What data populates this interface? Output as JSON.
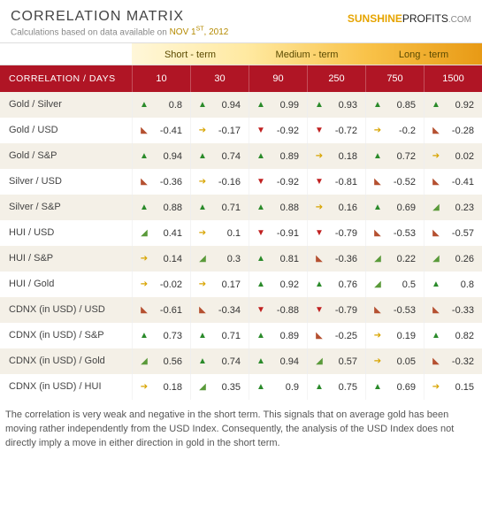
{
  "header": {
    "title": "CORRELATION MATRIX",
    "subtitle_prefix": "Calculations based on data available on  ",
    "date": "NOV 1ST, 2012",
    "logo_sun": "SUNSHINE",
    "logo_rest": "PROFITS",
    "logo_dotcom": ".COM"
  },
  "terms": [
    {
      "label": "Short - term",
      "class": "g-short",
      "span": 2
    },
    {
      "label": "Medium - term",
      "class": "g-med",
      "span": 2
    },
    {
      "label": "Long - term",
      "class": "g-long",
      "span": 2
    }
  ],
  "hdr_label": "CORRELATION / DAYS",
  "days": [
    "10",
    "30",
    "90",
    "250",
    "750",
    "1500"
  ],
  "arrow_glyphs": {
    "up": "▲",
    "down": "▼",
    "flat": "➔",
    "upslight": "◢",
    "downslight": "◣"
  },
  "arrow_classes": {
    "up": "a-up",
    "down": "a-down",
    "flat": "a-flat",
    "upslight": "a-upslight",
    "downslight": "a-downslight"
  },
  "rows": [
    {
      "label": "Gold / Silver",
      "cells": [
        {
          "a": "up",
          "v": "0.8"
        },
        {
          "a": "up",
          "v": "0.94"
        },
        {
          "a": "up",
          "v": "0.99"
        },
        {
          "a": "up",
          "v": "0.93"
        },
        {
          "a": "up",
          "v": "0.85"
        },
        {
          "a": "up",
          "v": "0.92"
        }
      ]
    },
    {
      "label": "Gold / USD",
      "cells": [
        {
          "a": "downslight",
          "v": "-0.41"
        },
        {
          "a": "flat",
          "v": "-0.17"
        },
        {
          "a": "down",
          "v": "-0.92"
        },
        {
          "a": "down",
          "v": "-0.72"
        },
        {
          "a": "flat",
          "v": "-0.2"
        },
        {
          "a": "downslight",
          "v": "-0.28"
        }
      ]
    },
    {
      "label": "Gold / S&P",
      "cells": [
        {
          "a": "up",
          "v": "0.94"
        },
        {
          "a": "up",
          "v": "0.74"
        },
        {
          "a": "up",
          "v": "0.89"
        },
        {
          "a": "flat",
          "v": "0.18"
        },
        {
          "a": "up",
          "v": "0.72"
        },
        {
          "a": "flat",
          "v": "0.02"
        }
      ]
    },
    {
      "label": "Silver / USD",
      "cells": [
        {
          "a": "downslight",
          "v": "-0.36"
        },
        {
          "a": "flat",
          "v": "-0.16"
        },
        {
          "a": "down",
          "v": "-0.92"
        },
        {
          "a": "down",
          "v": "-0.81"
        },
        {
          "a": "downslight",
          "v": "-0.52"
        },
        {
          "a": "downslight",
          "v": "-0.41"
        }
      ]
    },
    {
      "label": "Silver / S&P",
      "cells": [
        {
          "a": "up",
          "v": "0.88"
        },
        {
          "a": "up",
          "v": "0.71"
        },
        {
          "a": "up",
          "v": "0.88"
        },
        {
          "a": "flat",
          "v": "0.16"
        },
        {
          "a": "up",
          "v": "0.69"
        },
        {
          "a": "upslight",
          "v": "0.23"
        }
      ]
    },
    {
      "label": "HUI / USD",
      "cells": [
        {
          "a": "upslight",
          "v": "0.41"
        },
        {
          "a": "flat",
          "v": "0.1"
        },
        {
          "a": "down",
          "v": "-0.91"
        },
        {
          "a": "down",
          "v": "-0.79"
        },
        {
          "a": "downslight",
          "v": "-0.53"
        },
        {
          "a": "downslight",
          "v": "-0.57"
        }
      ]
    },
    {
      "label": "HUI / S&P",
      "cells": [
        {
          "a": "flat",
          "v": "0.14"
        },
        {
          "a": "upslight",
          "v": "0.3"
        },
        {
          "a": "up",
          "v": "0.81"
        },
        {
          "a": "downslight",
          "v": "-0.36"
        },
        {
          "a": "upslight",
          "v": "0.22"
        },
        {
          "a": "upslight",
          "v": "0.26"
        }
      ]
    },
    {
      "label": "HUI / Gold",
      "cells": [
        {
          "a": "flat",
          "v": "-0.02"
        },
        {
          "a": "flat",
          "v": "0.17"
        },
        {
          "a": "up",
          "v": "0.92"
        },
        {
          "a": "up",
          "v": "0.76"
        },
        {
          "a": "upslight",
          "v": "0.5"
        },
        {
          "a": "up",
          "v": "0.8"
        }
      ]
    },
    {
      "label": "CDNX (in USD) / USD",
      "cells": [
        {
          "a": "downslight",
          "v": "-0.61"
        },
        {
          "a": "downslight",
          "v": "-0.34"
        },
        {
          "a": "down",
          "v": "-0.88"
        },
        {
          "a": "down",
          "v": "-0.79"
        },
        {
          "a": "downslight",
          "v": "-0.53"
        },
        {
          "a": "downslight",
          "v": "-0.33"
        }
      ]
    },
    {
      "label": "CDNX (in USD) / S&P",
      "cells": [
        {
          "a": "up",
          "v": "0.73"
        },
        {
          "a": "up",
          "v": "0.71"
        },
        {
          "a": "up",
          "v": "0.89"
        },
        {
          "a": "downslight",
          "v": "-0.25"
        },
        {
          "a": "flat",
          "v": "0.19"
        },
        {
          "a": "up",
          "v": "0.82"
        }
      ]
    },
    {
      "label": "CDNX (in USD) / Gold",
      "cells": [
        {
          "a": "upslight",
          "v": "0.56"
        },
        {
          "a": "up",
          "v": "0.74"
        },
        {
          "a": "up",
          "v": "0.94"
        },
        {
          "a": "upslight",
          "v": "0.57"
        },
        {
          "a": "flat",
          "v": "0.05"
        },
        {
          "a": "downslight",
          "v": "-0.32"
        }
      ]
    },
    {
      "label": "CDNX (in USD) / HUI",
      "cells": [
        {
          "a": "flat",
          "v": "0.18"
        },
        {
          "a": "upslight",
          "v": "0.35"
        },
        {
          "a": "up",
          "v": "0.9"
        },
        {
          "a": "up",
          "v": "0.75"
        },
        {
          "a": "up",
          "v": "0.69"
        },
        {
          "a": "flat",
          "v": "0.15"
        }
      ]
    }
  ],
  "caption": "The correlation is very weak and negative in the short term. This signals that on average gold has been moving rather independently from the USD Index. Consequently, the analysis of the USD Index does not directly imply a move in either direction in gold in the short term.",
  "colors": {
    "header_bg": "#b01525",
    "alt_row": "#f4f0e7",
    "up": "#2a8a2a",
    "down": "#c02020",
    "flat": "#d8a400"
  }
}
